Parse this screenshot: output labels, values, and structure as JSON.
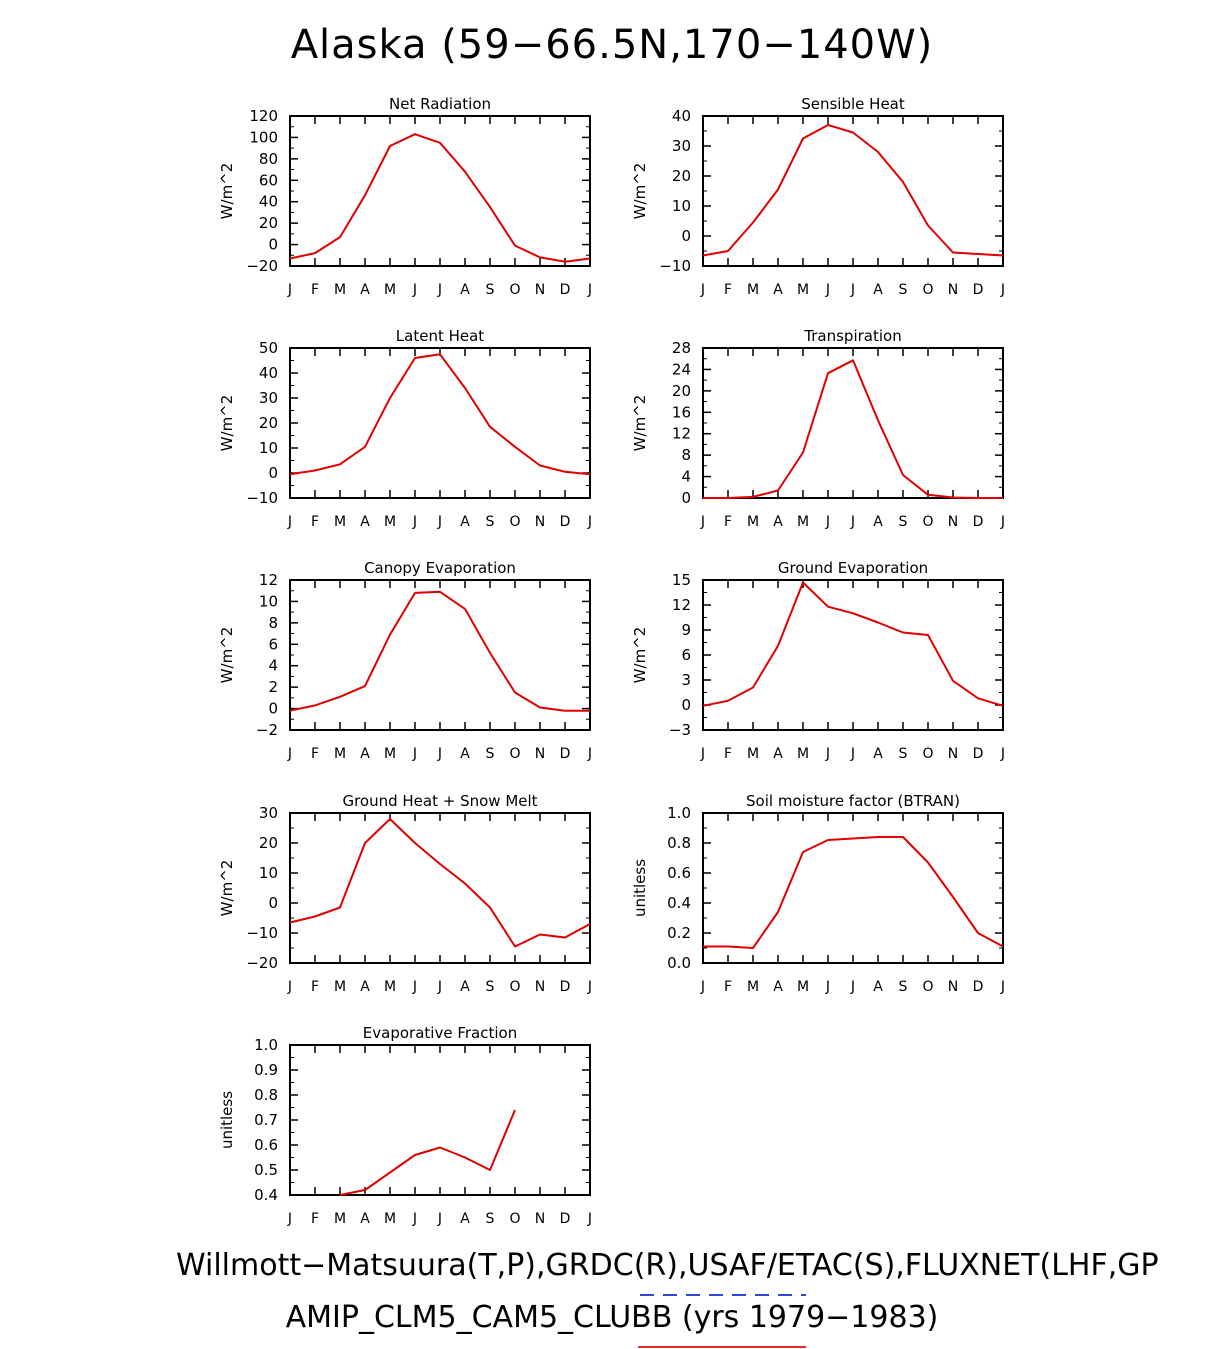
{
  "page_title": "Alaska (59−66.5N,170−140W)",
  "footer": {
    "line1": "Willmott−Matsuura(T,P),GRDC(R),USAF/ETAC(S),FLUXNET(LHF,GP",
    "line2": "AMIP_CLM5_CAM5_CLUBB (yrs 1979−1983)",
    "obs_dash_color": "#3344dd",
    "model_line_color": "#e03030"
  },
  "chart_data": [
    {
      "type": "line",
      "title": "Net Radiation",
      "ylabel": "W/m^2",
      "ylim": [
        -20,
        120
      ],
      "yticks": [
        -20,
        0,
        20,
        40,
        60,
        80,
        100,
        120
      ],
      "categories": [
        "J",
        "F",
        "M",
        "A",
        "M",
        "J",
        "J",
        "A",
        "S",
        "O",
        "N",
        "D",
        "J"
      ],
      "series": [
        {
          "color": "#e00000",
          "values": [
            -13,
            -8,
            7,
            46,
            92,
            103,
            95,
            68,
            35,
            -1,
            -12,
            -16,
            -13
          ]
        }
      ]
    },
    {
      "type": "line",
      "title": "Sensible Heat",
      "ylabel": "W/m^2",
      "ylim": [
        -10,
        40
      ],
      "yticks": [
        -10,
        0,
        10,
        20,
        30,
        40
      ],
      "categories": [
        "J",
        "F",
        "M",
        "A",
        "M",
        "J",
        "J",
        "A",
        "S",
        "O",
        "N",
        "D",
        "J"
      ],
      "series": [
        {
          "color": "#e00000",
          "values": [
            -6.5,
            -5,
            4.5,
            15.5,
            32.5,
            37,
            34.5,
            28,
            18,
            3.5,
            -5.5,
            -6,
            -6.5
          ]
        }
      ]
    },
    {
      "type": "line",
      "title": "Latent Heat",
      "ylabel": "W/m^2",
      "ylim": [
        -10,
        50
      ],
      "yticks": [
        -10,
        0,
        10,
        20,
        30,
        40,
        50
      ],
      "categories": [
        "J",
        "F",
        "M",
        "A",
        "M",
        "J",
        "J",
        "A",
        "S",
        "O",
        "N",
        "D",
        "J"
      ],
      "series": [
        {
          "color": "#e00000",
          "values": [
            -0.5,
            1,
            3.5,
            10.5,
            30,
            46,
            47.5,
            34,
            18.5,
            10.5,
            3,
            0.5,
            -0.5
          ]
        }
      ]
    },
    {
      "type": "line",
      "title": "Transpiration",
      "ylabel": "W/m^2",
      "ylim": [
        0,
        28
      ],
      "yticks": [
        0,
        4,
        8,
        12,
        16,
        20,
        24,
        28
      ],
      "categories": [
        "J",
        "F",
        "M",
        "A",
        "M",
        "J",
        "J",
        "A",
        "S",
        "O",
        "N",
        "D",
        "J"
      ],
      "series": [
        {
          "color": "#e00000",
          "values": [
            0,
            0,
            0.2,
            1.4,
            8.5,
            23.3,
            25.7,
            14.5,
            4.3,
            0.6,
            0.1,
            0,
            0
          ]
        }
      ]
    },
    {
      "type": "line",
      "title": "Canopy Evaporation",
      "ylabel": "W/m^2",
      "ylim": [
        -2,
        12
      ],
      "yticks": [
        -2,
        0,
        2,
        4,
        6,
        8,
        10,
        12
      ],
      "categories": [
        "J",
        "F",
        "M",
        "A",
        "M",
        "J",
        "J",
        "A",
        "S",
        "O",
        "N",
        "D",
        "J"
      ],
      "series": [
        {
          "color": "#e00000",
          "values": [
            -0.2,
            0.3,
            1.1,
            2.1,
            6.9,
            10.8,
            10.9,
            9.3,
            5.2,
            1.5,
            0.1,
            -0.2,
            -0.2
          ]
        }
      ]
    },
    {
      "type": "line",
      "title": "Ground Evaporation",
      "ylabel": "W/m^2",
      "ylim": [
        -3,
        15
      ],
      "yticks": [
        -3,
        0,
        3,
        6,
        9,
        12,
        15
      ],
      "categories": [
        "J",
        "F",
        "M",
        "A",
        "M",
        "J",
        "J",
        "A",
        "S",
        "O",
        "N",
        "D",
        "J"
      ],
      "series": [
        {
          "color": "#e00000",
          "values": [
            -0.1,
            0.5,
            2.1,
            7.1,
            14.7,
            11.8,
            11,
            9.9,
            8.7,
            8.4,
            2.9,
            0.8,
            -0.1
          ]
        }
      ]
    },
    {
      "type": "line",
      "title": "Ground Heat + Snow Melt",
      "ylabel": "W/m^2",
      "ylim": [
        -20,
        30
      ],
      "yticks": [
        -20,
        -10,
        0,
        10,
        20,
        30
      ],
      "categories": [
        "J",
        "F",
        "M",
        "A",
        "M",
        "J",
        "J",
        "A",
        "S",
        "O",
        "N",
        "D",
        "J"
      ],
      "series": [
        {
          "color": "#e00000",
          "values": [
            -6.5,
            -4.5,
            -1.5,
            20,
            28,
            20,
            13,
            6.5,
            -1.5,
            -14.5,
            -10.5,
            -11.5,
            -7
          ]
        }
      ]
    },
    {
      "type": "line",
      "title": "Soil moisture factor (BTRAN)",
      "ylabel": "unitless",
      "ylim": [
        0,
        1
      ],
      "yticks": [
        "0.0",
        "0.2",
        "0.4",
        "0.6",
        "0.8",
        "1.0"
      ],
      "categories": [
        "J",
        "F",
        "M",
        "A",
        "M",
        "J",
        "J",
        "A",
        "S",
        "O",
        "N",
        "D",
        "J"
      ],
      "series": [
        {
          "color": "#e00000",
          "values": [
            0.11,
            0.11,
            0.1,
            0.34,
            0.74,
            0.82,
            0.83,
            0.84,
            0.84,
            0.67,
            0.44,
            0.2,
            0.11
          ]
        }
      ]
    },
    {
      "type": "line",
      "title": "Evaporative Fraction",
      "ylabel": "unitless",
      "ylim": [
        0.4,
        1
      ],
      "yticks": [
        "0.4",
        "0.5",
        "0.6",
        "0.7",
        "0.8",
        "0.9",
        "1.0"
      ],
      "categories": [
        "J",
        "F",
        "M",
        "A",
        "M",
        "J",
        "J",
        "A",
        "S",
        "O",
        "N",
        "D",
        "J"
      ],
      "series": [
        {
          "color": "#e00000",
          "values": [
            null,
            null,
            0.4,
            0.42,
            0.49,
            0.56,
            0.59,
            0.55,
            0.5,
            0.74,
            null,
            null,
            null
          ]
        }
      ]
    }
  ]
}
